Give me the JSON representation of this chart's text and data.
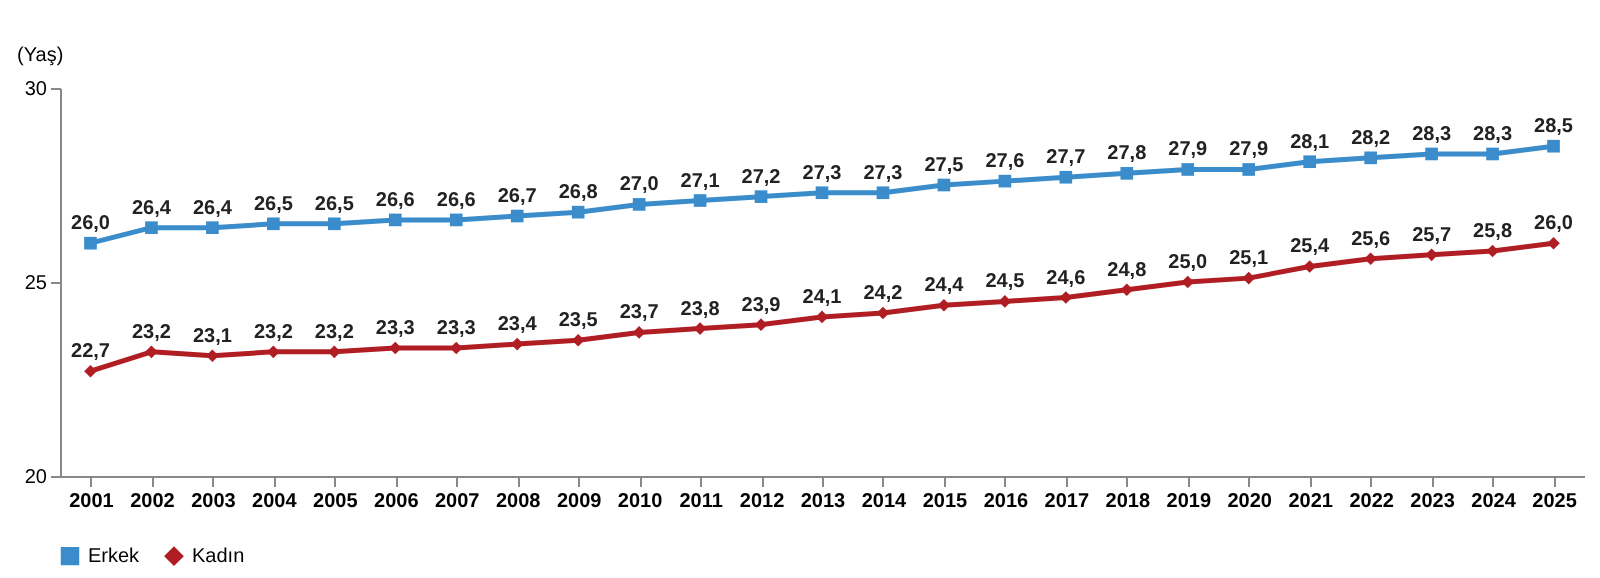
{
  "chart_data": {
    "type": "line",
    "ylabel": "(Yaş)",
    "categories": [
      "2001",
      "2002",
      "2003",
      "2004",
      "2005",
      "2006",
      "2007",
      "2008",
      "2009",
      "2010",
      "2011",
      "2012",
      "2013",
      "2014",
      "2015",
      "2016",
      "2017",
      "2018",
      "2019",
      "2020",
      "2021",
      "2022",
      "2023",
      "2024",
      "2025"
    ],
    "series": [
      {
        "name": "Erkek",
        "color": "#3a8ccb",
        "marker": "square",
        "values": [
          26.0,
          26.4,
          26.4,
          26.5,
          26.5,
          26.6,
          26.6,
          26.7,
          26.8,
          27.0,
          27.1,
          27.2,
          27.3,
          27.3,
          27.5,
          27.6,
          27.7,
          27.8,
          27.9,
          27.9,
          28.1,
          28.2,
          28.3,
          28.3,
          28.5
        ],
        "value_labels": [
          "26,0",
          "26,4",
          "26,4",
          "26,5",
          "26,5",
          "26,6",
          "26,6",
          "26,7",
          "26,8",
          "27,0",
          "27,1",
          "27,2",
          "27,3",
          "27,3",
          "27,5",
          "27,6",
          "27,7",
          "27,8",
          "27,9",
          "27,9",
          "28,1",
          "28,2",
          "28,3",
          "28,3",
          "28,5"
        ]
      },
      {
        "name": "Kadın",
        "color": "#b01e23",
        "marker": "diamond",
        "values": [
          22.7,
          23.2,
          23.1,
          23.2,
          23.2,
          23.3,
          23.3,
          23.4,
          23.5,
          23.7,
          23.8,
          23.9,
          24.1,
          24.2,
          24.4,
          24.5,
          24.6,
          24.8,
          25.0,
          25.1,
          25.4,
          25.6,
          25.7,
          25.8,
          26.0
        ],
        "value_labels": [
          "22,7",
          "23,2",
          "23,1",
          "23,2",
          "23,2",
          "23,3",
          "23,3",
          "23,4",
          "23,5",
          "23,7",
          "23,8",
          "23,9",
          "24,1",
          "24,2",
          "24,4",
          "24,5",
          "24,6",
          "24,8",
          "25,0",
          "25,1",
          "25,4",
          "25,6",
          "25,7",
          "25,8",
          "26,0"
        ]
      }
    ],
    "ylim": [
      20,
      30
    ],
    "yticks": [
      20,
      25,
      30
    ],
    "grid": false,
    "legend": "bottom",
    "line_style": "solid"
  }
}
